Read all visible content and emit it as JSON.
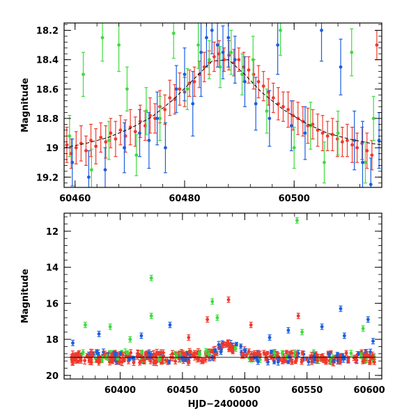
{
  "chart_data": [
    {
      "type": "scatter",
      "panel": "top",
      "xlabel": "",
      "ylabel": "Magnitude",
      "xlim": [
        60458,
        60516
      ],
      "ylim": [
        19.27,
        18.15
      ],
      "y_inverted": true,
      "grid": false,
      "xticks": [
        60460,
        60480,
        60500
      ],
      "yticks": [
        18.2,
        18.4,
        18.6,
        18.8,
        19,
        19.2
      ],
      "xtick_labels": [
        "60460",
        "60480",
        "60500"
      ],
      "ytick_labels": [
        "18.2",
        "18.4",
        "18.6",
        "18.8",
        "19",
        "19.2"
      ],
      "colors": {
        "red": "#f0392b",
        "green": "#3ddc3d",
        "blue": "#1a5fe0",
        "model": "#000000"
      },
      "model_curve": {
        "x": [
          60458,
          60462,
          60466,
          60470,
          60474,
          60478,
          60482,
          60485,
          60488,
          60491,
          60494,
          60498,
          60502,
          60506,
          60510,
          60514,
          60516
        ],
        "y": [
          19.0,
          18.97,
          18.93,
          18.87,
          18.79,
          18.67,
          18.52,
          18.41,
          18.4,
          18.5,
          18.62,
          18.74,
          18.83,
          18.9,
          18.94,
          18.97,
          18.98
        ]
      },
      "series": [
        {
          "color": "red",
          "x": [
            60458.5,
            60459.3,
            60460.2,
            60461.1,
            60462.0,
            60462.9,
            60463.8,
            60464.7,
            60465.6,
            60466.5,
            60467.4,
            60468.3,
            60469.2,
            60470.1,
            60471.0,
            60471.9,
            60472.8,
            60473.7,
            60474.6,
            60475.5,
            60476.4,
            60477.3,
            60478.2,
            60479.1,
            60480.0,
            60480.9,
            60481.8,
            60482.7,
            60483.6,
            60484.5,
            60485.4,
            60486.3,
            60487.2,
            60488.1,
            60489.0,
            60489.9,
            60490.8,
            60491.7,
            60492.6,
            60493.5,
            60494.4,
            60495.3,
            60496.2,
            60497.1,
            60498.0,
            60498.9,
            60499.8,
            60500.7,
            60501.6,
            60502.5,
            60503.4,
            60504.3,
            60505.2,
            60506.1,
            60507.0,
            60507.9,
            60508.8,
            60509.7,
            60510.6,
            60511.5,
            60512.4,
            60513.3,
            60514.2,
            60515.1
          ],
          "y": [
            18.98,
            19.04,
            19.0,
            18.97,
            19.02,
            18.95,
            18.99,
            18.93,
            18.96,
            18.9,
            18.94,
            18.88,
            18.92,
            18.86,
            18.89,
            18.82,
            18.85,
            18.78,
            18.8,
            18.72,
            18.74,
            18.66,
            18.67,
            18.6,
            18.62,
            18.56,
            18.55,
            18.5,
            18.45,
            18.42,
            18.38,
            18.36,
            18.4,
            18.37,
            18.42,
            18.4,
            18.45,
            18.47,
            18.5,
            18.55,
            18.58,
            18.62,
            18.66,
            18.7,
            18.72,
            18.74,
            18.78,
            18.8,
            18.82,
            18.85,
            18.84,
            18.88,
            18.9,
            18.92,
            18.91,
            18.94,
            18.96,
            18.95,
            18.98,
            19.0,
            18.97,
            19.02,
            19.05,
            18.3
          ],
          "err": [
            0.12,
            0.1,
            0.11,
            0.12,
            0.1,
            0.11,
            0.12,
            0.1,
            0.11,
            0.1,
            0.12,
            0.1,
            0.11,
            0.12,
            0.1,
            0.11,
            0.1,
            0.12,
            0.1,
            0.11,
            0.1,
            0.12,
            0.1,
            0.11,
            0.1,
            0.09,
            0.1,
            0.09,
            0.1,
            0.08,
            0.1,
            0.09,
            0.08,
            0.1,
            0.09,
            0.08,
            0.1,
            0.09,
            0.1,
            0.11,
            0.1,
            0.09,
            0.1,
            0.11,
            0.1,
            0.12,
            0.1,
            0.11,
            0.1,
            0.12,
            0.1,
            0.11,
            0.12,
            0.1,
            0.11,
            0.12,
            0.1,
            0.11,
            0.12,
            0.1,
            0.11,
            0.12,
            0.1,
            0.1
          ]
        },
        {
          "color": "green",
          "x": [
            60459.0,
            60461.5,
            60463.0,
            60465.0,
            60466.2,
            60468.0,
            60469.5,
            60471.2,
            60473.0,
            60475.5,
            60478.0,
            60480.5,
            60482.5,
            60484.5,
            60486.5,
            60488.5,
            60490.5,
            60492.5,
            60495.0,
            60497.5,
            60500.0,
            60503.0,
            60505.5,
            60508.0,
            60510.5,
            60513.0,
            60514.5
          ],
          "y": [
            18.92,
            18.5,
            19.15,
            18.25,
            18.95,
            18.3,
            18.6,
            19.05,
            18.75,
            18.8,
            18.22,
            18.6,
            18.3,
            18.4,
            18.45,
            18.35,
            18.5,
            18.4,
            18.75,
            18.2,
            19.0,
            18.85,
            19.1,
            18.9,
            18.35,
            19.1,
            18.8
          ],
          "err": [
            0.14,
            0.15,
            0.14,
            0.16,
            0.13,
            0.18,
            0.15,
            0.14,
            0.16,
            0.15,
            0.17,
            0.14,
            0.16,
            0.13,
            0.14,
            0.15,
            0.14,
            0.16,
            0.15,
            0.17,
            0.14,
            0.16,
            0.14,
            0.15,
            0.16,
            0.14,
            0.15
          ]
        },
        {
          "color": "blue",
          "x": [
            60459.5,
            60462.5,
            60465.5,
            60469.0,
            60471.8,
            60473.5,
            60475.0,
            60476.5,
            60478.5,
            60480.0,
            60481.5,
            60483.0,
            60484.0,
            60485.0,
            60486.0,
            60487.0,
            60488.0,
            60489.2,
            60491.0,
            60493.0,
            60495.5,
            60497.0,
            60499.5,
            60502.0,
            60505.0,
            60508.5,
            60511.0,
            60512.5,
            60514.0,
            60515.5
          ],
          "y": [
            19.1,
            19.2,
            19.15,
            19.0,
            18.9,
            18.95,
            18.8,
            19.0,
            18.6,
            18.5,
            18.7,
            18.35,
            18.25,
            18.2,
            18.3,
            18.35,
            18.25,
            18.4,
            18.55,
            18.7,
            18.8,
            18.3,
            18.85,
            18.9,
            18.2,
            18.45,
            18.95,
            19.1,
            19.25,
            18.95
          ],
          "err": [
            0.16,
            0.18,
            0.15,
            0.17,
            0.16,
            0.19,
            0.18,
            0.17,
            0.16,
            0.18,
            0.22,
            0.3,
            0.2,
            0.16,
            0.15,
            0.18,
            0.2,
            0.16,
            0.17,
            0.18,
            0.19,
            0.2,
            0.17,
            0.18,
            0.21,
            0.19,
            0.2,
            0.28,
            0.18,
            0.19
          ]
        }
      ]
    },
    {
      "type": "scatter",
      "panel": "bottom",
      "xlabel": "HJD−2400000",
      "ylabel": "Magnitude",
      "xlim": [
        60355,
        60610
      ],
      "ylim": [
        20.2,
        11.0
      ],
      "y_inverted": true,
      "grid": false,
      "xticks": [
        60400,
        60450,
        60500,
        60550,
        60600
      ],
      "yticks": [
        12,
        14,
        16,
        18,
        20
      ],
      "xtick_labels": [
        "60400",
        "60450",
        "60500",
        "60550",
        "60600"
      ],
      "ytick_labels": [
        "12",
        "14",
        "16",
        "18",
        "20"
      ],
      "baseline_mag": 19.0,
      "colors": {
        "red": "#f0392b",
        "green": "#3ddc3d",
        "blue": "#1a5fe0"
      },
      "outliers": [
        {
          "color": "green",
          "x": 60542,
          "y": 11.4
        },
        {
          "color": "green",
          "x": 60425,
          "y": 14.6
        },
        {
          "color": "red",
          "x": 60487,
          "y": 15.8
        },
        {
          "color": "green",
          "x": 60474,
          "y": 15.9
        },
        {
          "color": "red",
          "x": 60543,
          "y": 16.7
        },
        {
          "color": "green",
          "x": 60425,
          "y": 16.7
        },
        {
          "color": "blue",
          "x": 60577,
          "y": 16.3
        },
        {
          "color": "blue",
          "x": 60599,
          "y": 16.9
        },
        {
          "color": "red",
          "x": 60470,
          "y": 16.9
        },
        {
          "color": "green",
          "x": 60478,
          "y": 16.8
        },
        {
          "color": "red",
          "x": 60505,
          "y": 17.2
        },
        {
          "color": "green",
          "x": 60372,
          "y": 17.2
        },
        {
          "color": "green",
          "x": 60392,
          "y": 17.3
        },
        {
          "color": "blue",
          "x": 60440,
          "y": 17.2
        },
        {
          "color": "blue",
          "x": 60535,
          "y": 17.5
        },
        {
          "color": "blue",
          "x": 60562,
          "y": 17.3
        },
        {
          "color": "green",
          "x": 60595,
          "y": 17.4
        },
        {
          "color": "blue",
          "x": 60383,
          "y": 17.7
        },
        {
          "color": "blue",
          "x": 60417,
          "y": 17.8
        },
        {
          "color": "red",
          "x": 60455,
          "y": 17.9
        },
        {
          "color": "blue",
          "x": 60520,
          "y": 17.9
        },
        {
          "color": "green",
          "x": 60546,
          "y": 17.6
        },
        {
          "color": "blue",
          "x": 60580,
          "y": 17.8
        },
        {
          "color": "green",
          "x": 60408,
          "y": 18.0
        },
        {
          "color": "blue",
          "x": 60362,
          "y": 18.2
        },
        {
          "color": "blue",
          "x": 60603,
          "y": 18.1
        }
      ]
    }
  ]
}
